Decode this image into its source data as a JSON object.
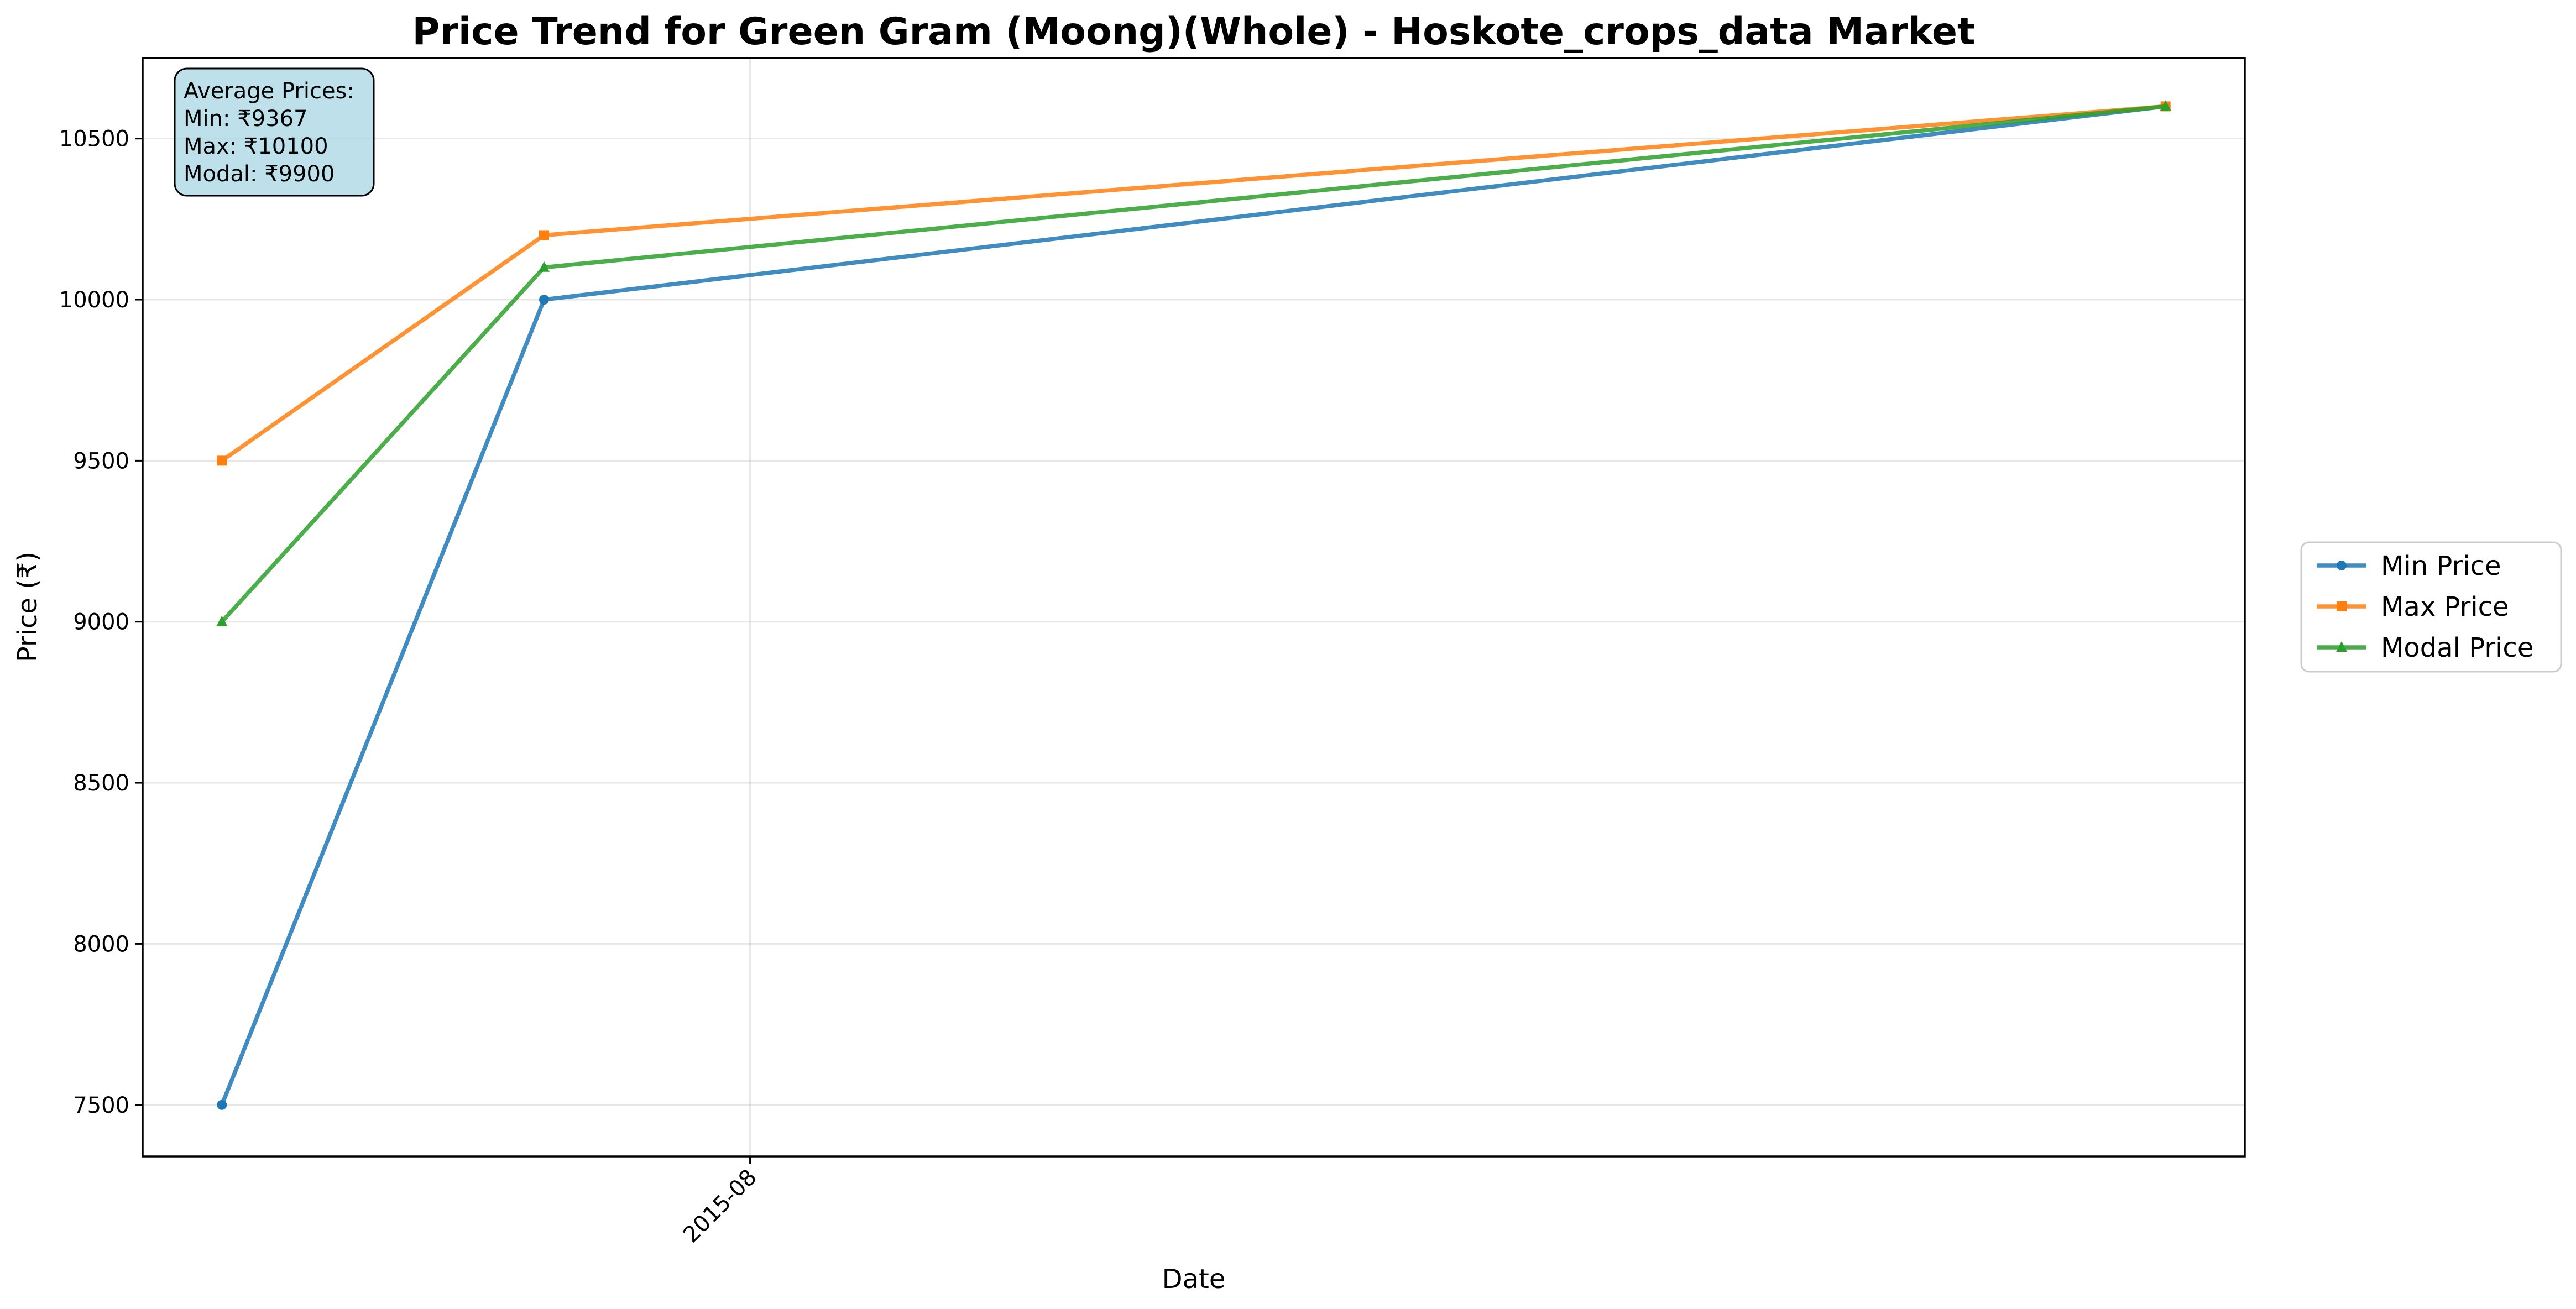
{
  "chart_data": {
    "type": "line",
    "title": "Price Trend for Green Gram (Moong)(Whole) - Hoskote_crops_data Market",
    "xlabel": "Date",
    "ylabel": "Price (₹)",
    "x": [
      "2015-04-23",
      "2015-06-23",
      "2016-04-25"
    ],
    "x_ticks": [
      {
        "value": "2015-08-01",
        "label": "2015-08"
      }
    ],
    "xlim": [
      "2015-04-08",
      "2016-05-10"
    ],
    "ylim": [
      7340,
      10750
    ],
    "y_ticks": [
      7500,
      8000,
      8500,
      9000,
      9500,
      10000,
      10500
    ],
    "grid": true,
    "legend_position": "right",
    "series": [
      {
        "name": "Min Price",
        "color": "#1f77b4",
        "marker": "circle",
        "values": [
          7500,
          10000,
          10600
        ]
      },
      {
        "name": "Max Price",
        "color": "#ff7f0e",
        "marker": "square",
        "values": [
          9500,
          10200,
          10600
        ]
      },
      {
        "name": "Modal Price",
        "color": "#2ca02c",
        "marker": "triangle",
        "values": [
          9000,
          10100,
          10600
        ]
      }
    ],
    "annotation": {
      "lines": [
        "Average Prices:",
        "Min: ₹9367",
        "Max: ₹10100",
        "Modal: ₹9900"
      ],
      "background": "#add8e6"
    }
  }
}
